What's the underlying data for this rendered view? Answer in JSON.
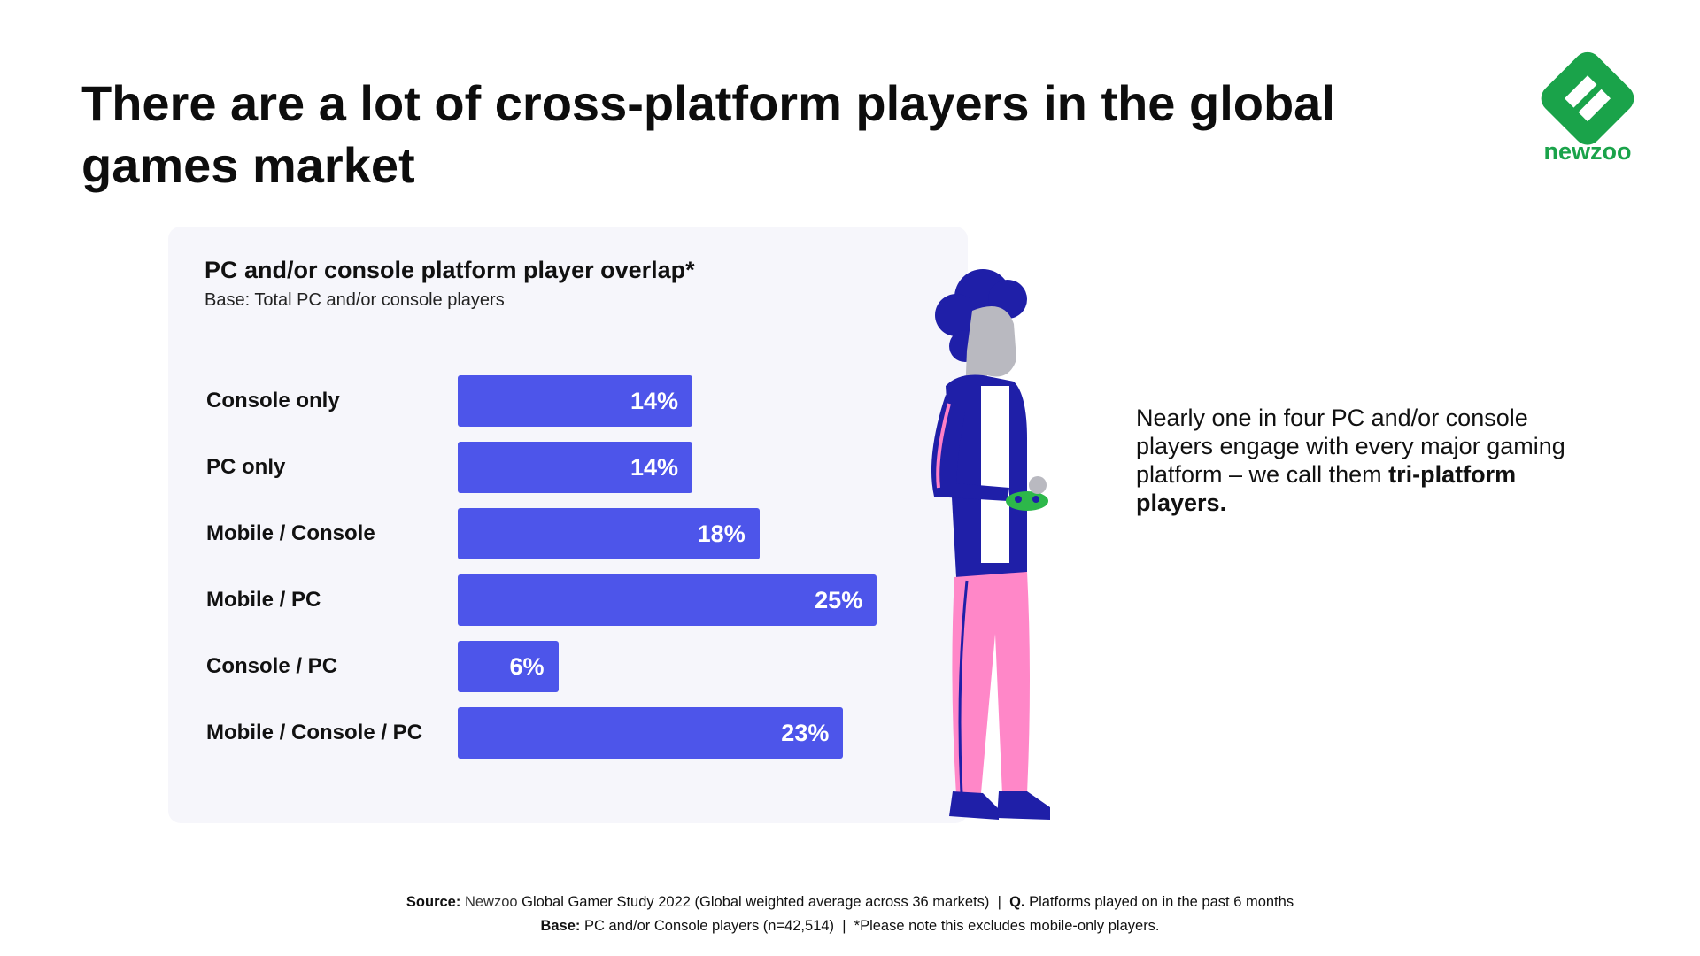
{
  "title": "There are a lot of cross-platform players in the global games market",
  "logo": {
    "text": "newzoo",
    "color": "#1aa34a"
  },
  "chart_data": {
    "type": "bar",
    "orientation": "horizontal",
    "title": "PC and/or console platform player overlap*",
    "subtitle": "Base: Total PC and/or console players",
    "categories": [
      "Console only",
      "PC only",
      "Mobile / Console",
      "Mobile / PC",
      "Console / PC",
      "Mobile / Console / PC"
    ],
    "values": [
      14,
      14,
      18,
      25,
      6,
      23
    ],
    "value_labels": [
      "14%",
      "14%",
      "18%",
      "25%",
      "6%",
      "23%"
    ],
    "unit": "%",
    "xlim": [
      0,
      28
    ],
    "bar_color": "#4d55ea",
    "grid": false,
    "legend": "none"
  },
  "side_text": {
    "before": "Nearly one in four PC and/or console players engage with every major gaming platform – we call them ",
    "bold": "tri-platform players."
  },
  "footer": {
    "line1": {
      "source_label": "Source:",
      "source_brand": "Newzoo",
      "source_text": " Global Gamer Study 2022 (Global weighted average across 36 markets)  |  ",
      "q_label": "Q.",
      "q_text": " Platforms played on in the past 6 months"
    },
    "line2": {
      "base_label": "Base:",
      "base_text": " PC and/or Console players (n=42,514)  |  *Please note this excludes mobile-only players."
    }
  }
}
